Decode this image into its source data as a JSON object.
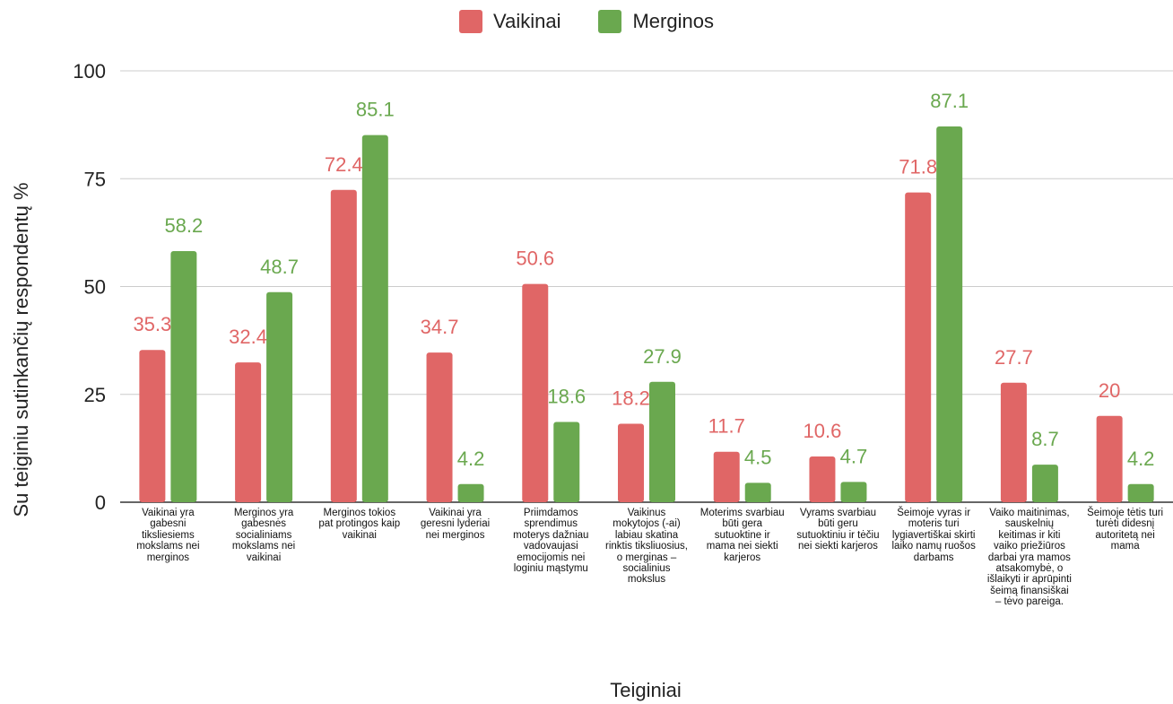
{
  "chart_data": {
    "type": "bar",
    "title": "",
    "xlabel": "Teiginiai",
    "ylabel": "Su teiginiu sutinkančių respondentų %",
    "ylim": [
      0,
      100
    ],
    "yticks": [
      "0",
      "25",
      "50",
      "75",
      "100"
    ],
    "grid": true,
    "legend_position": "top",
    "categories": [
      "Vaikinai yra gabesni tiksliesiems mokslams nei merginos",
      "Merginos yra gabesnės socialiniams mokslams nei vaikinai",
      "Merginos tokios pat protingos kaip vaikinai",
      "Vaikinai yra geresni lyderiai nei merginos",
      "Priimdamos sprendimus moterys dažniau vadovaujasi emocijomis nei loginiu mąstymu",
      "Vaikinus mokytojos (-ai) labiau skatina rinktis tiksliuosius, o merginas – socialinius mokslus",
      "Moterims svarbiau būti gera sutuoktine ir mama nei siekti karjeros",
      "Vyrams svarbiau būti geru sutuoktiniu ir tėčiu nei siekti karjeros",
      "Šeimoje vyras ir moteris turi lygiavertiškai skirti laiko namų ruošos darbams",
      "Vaiko maitinimas, sauskelnių keitimas ir kiti vaiko priežiūros darbai yra mamos atsakomybė, o išlaikyti ir aprūpinti šeimą finansiškai – tėvo pareiga.",
      "Šeimoje tėtis turi turėti didesnį autoritetą nei mama"
    ],
    "series": [
      {
        "name": "Vaikinai",
        "color": "#e06666",
        "values": [
          35.3,
          32.4,
          72.4,
          34.7,
          50.6,
          18.2,
          11.7,
          10.6,
          71.8,
          27.7,
          20
        ],
        "labels": [
          "35.3",
          "32.4",
          "72.4",
          "34.7",
          "50.6",
          "18.2",
          "11.7",
          "10.6",
          "71.8",
          "27.7",
          "20"
        ]
      },
      {
        "name": "Merginos",
        "color": "#6aa84f",
        "values": [
          58.2,
          48.7,
          85.1,
          4.2,
          18.6,
          27.9,
          4.5,
          4.7,
          87.1,
          8.7,
          4.2
        ],
        "labels": [
          "58.2",
          "48.7",
          "85.1",
          "4.2",
          "18.6",
          "27.9",
          "4.5",
          "4.7",
          "87.1",
          "8.7",
          "4.2"
        ]
      }
    ]
  }
}
